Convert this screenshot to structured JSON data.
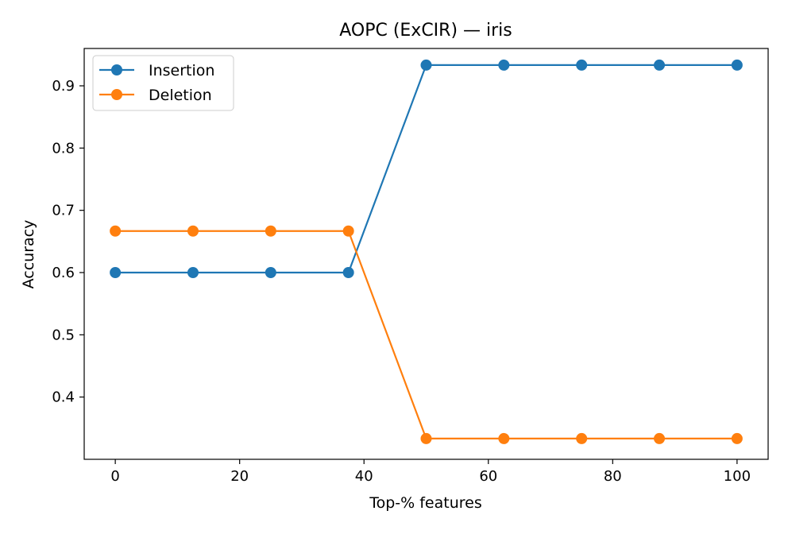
{
  "chart_data": {
    "type": "line",
    "title": "AOPC (ExCIR) — iris",
    "xlabel": "Top-% features",
    "ylabel": "Accuracy",
    "x": [
      0,
      12.5,
      25,
      37.5,
      50,
      62.5,
      75,
      87.5,
      100
    ],
    "series": [
      {
        "name": "Insertion",
        "color": "#1f77b4",
        "values": [
          0.6,
          0.6,
          0.6,
          0.6,
          0.9333,
          0.9333,
          0.9333,
          0.9333,
          0.9333
        ]
      },
      {
        "name": "Deletion",
        "color": "#ff7f0e",
        "values": [
          0.6667,
          0.6667,
          0.6667,
          0.6667,
          0.3333,
          0.3333,
          0.3333,
          0.3333,
          0.3333
        ]
      }
    ],
    "xlim": [
      -5,
      105
    ],
    "ylim": [
      0.3,
      0.96
    ],
    "xticks": [
      0,
      20,
      40,
      60,
      80,
      100
    ],
    "yticks": [
      0.4,
      0.5,
      0.6,
      0.7,
      0.8,
      0.9
    ],
    "ytick_labels": [
      "0.4",
      "0.5",
      "0.6",
      "0.7",
      "0.8",
      "0.9"
    ],
    "grid": false,
    "legend_position": "top-left"
  }
}
